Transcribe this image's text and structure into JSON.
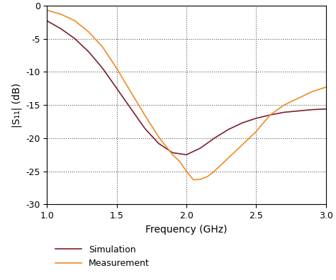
{
  "chart_data": {
    "type": "line",
    "x_label": "Frequency (GHz)",
    "y_label": "|S₁₁| (dB)",
    "series": [
      {
        "name": "Simulation",
        "color": "#7b1f2e",
        "x": [
          1.0,
          1.1,
          1.2,
          1.3,
          1.4,
          1.5,
          1.6,
          1.7,
          1.8,
          1.9,
          2.0,
          2.1,
          2.2,
          2.3,
          2.4,
          2.5,
          2.6,
          2.7,
          2.8,
          2.9,
          3.0
        ],
        "values": [
          -2.3,
          -3.5,
          -5,
          -7,
          -9.5,
          -12.5,
          -15.5,
          -18.5,
          -20.8,
          -22.2,
          -22.5,
          -21.5,
          -20,
          -18.7,
          -17.7,
          -17,
          -16.5,
          -16.1,
          -15.9,
          -15.7,
          -15.6
        ]
      },
      {
        "name": "Measurement",
        "color": "#f08a24",
        "x": [
          1.0,
          1.1,
          1.2,
          1.3,
          1.4,
          1.5,
          1.6,
          1.7,
          1.8,
          1.9,
          1.95,
          2.0,
          2.05,
          2.1,
          2.15,
          2.2,
          2.3,
          2.4,
          2.5,
          2.6,
          2.7,
          2.8,
          2.9,
          3.0
        ],
        "values": [
          -0.7,
          -1.3,
          -2.3,
          -4,
          -6.3,
          -9.5,
          -13,
          -16.5,
          -19.8,
          -22.5,
          -23.5,
          -25,
          -26.3,
          -26.2,
          -25.8,
          -25,
          -23,
          -21,
          -19,
          -16.5,
          -15,
          -14,
          -13,
          -12.3
        ]
      }
    ],
    "xlim": [
      1.0,
      3.0
    ],
    "ylim": [
      -30,
      0
    ],
    "xticks": [
      {
        "value": 1.0,
        "label": "1.0"
      },
      {
        "value": 1.5,
        "label": "1.5"
      },
      {
        "value": 2.0,
        "label": "2.0"
      },
      {
        "value": 2.5,
        "label": "2.5"
      },
      {
        "value": 3.0,
        "label": "3.0"
      }
    ],
    "yticks": [
      -30,
      -25,
      -20,
      -15,
      -10,
      -5,
      0
    ],
    "grid": true,
    "legend": "lower left"
  }
}
